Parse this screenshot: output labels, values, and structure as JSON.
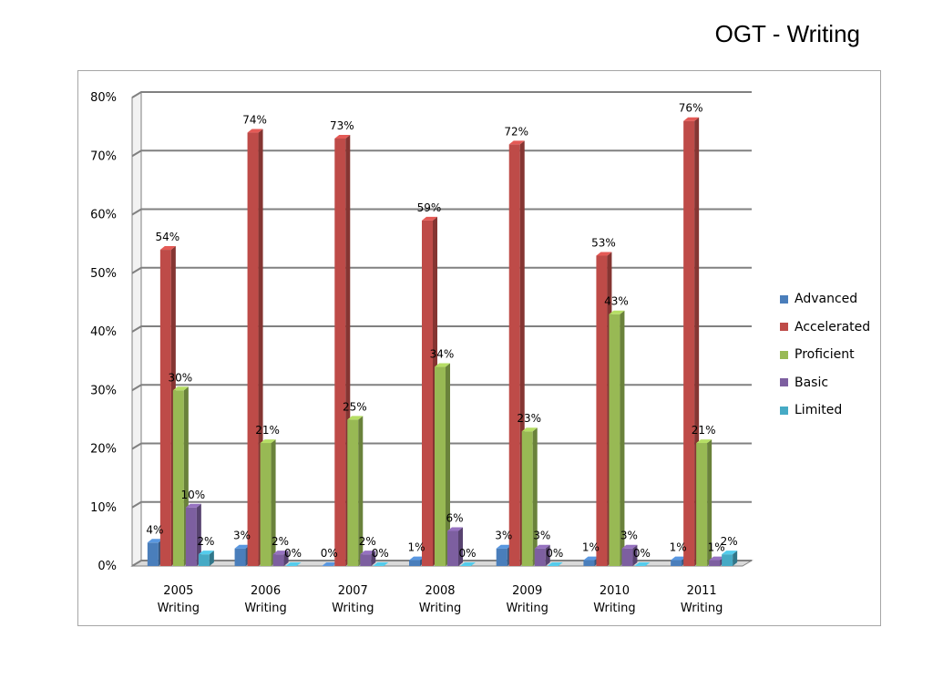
{
  "title": "OGT - Writing",
  "chart_data": {
    "type": "bar",
    "categories": [
      [
        "2005",
        "Writing"
      ],
      [
        "2006",
        "Writing"
      ],
      [
        "2007",
        "Writing"
      ],
      [
        "2008",
        "Writing"
      ],
      [
        "2009",
        "Writing"
      ],
      [
        "2010",
        "Writing"
      ],
      [
        "2011",
        "Writing"
      ]
    ],
    "series": [
      {
        "name": "Advanced",
        "color": "#4a7ebb",
        "values": [
          4,
          3,
          0,
          1,
          3,
          1,
          1
        ]
      },
      {
        "name": "Accelerated",
        "color": "#be4b48",
        "values": [
          54,
          74,
          73,
          59,
          72,
          53,
          76
        ]
      },
      {
        "name": "Proficient",
        "color": "#98b954",
        "values": [
          30,
          21,
          25,
          34,
          23,
          43,
          21
        ]
      },
      {
        "name": "Basic",
        "color": "#7d5fa0",
        "values": [
          10,
          2,
          2,
          6,
          3,
          3,
          1
        ]
      },
      {
        "name": "Limited",
        "color": "#46aac5",
        "values": [
          2,
          0,
          0,
          0,
          0,
          0,
          2
        ]
      }
    ],
    "value_suffix": "%",
    "yticks": [
      "0%",
      "10%",
      "20%",
      "30%",
      "40%",
      "50%",
      "60%",
      "70%",
      "80%"
    ],
    "ylim": [
      0,
      80
    ],
    "grid": true,
    "legend_position": "right",
    "three_d": true
  }
}
